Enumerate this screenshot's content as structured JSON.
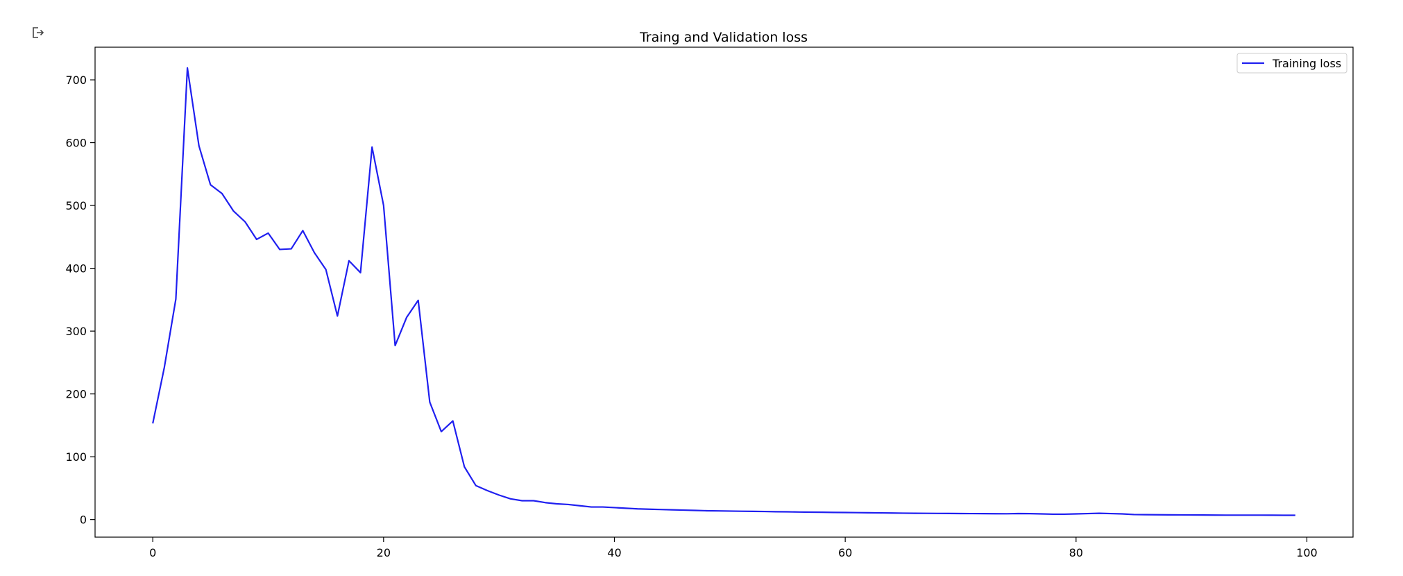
{
  "output_icon": "output-redirect-icon",
  "colors": {
    "series": "#1f1ff0",
    "axes": "#000000",
    "legend_border": "#cccccc"
  },
  "chart_data": {
    "type": "line",
    "title": "Traing and Validation loss",
    "xlabel": "",
    "ylabel": "",
    "xlim": [
      -5,
      104
    ],
    "ylim": [
      -28,
      752
    ],
    "xticks": [
      0,
      20,
      40,
      60,
      80,
      100
    ],
    "yticks": [
      0,
      100,
      200,
      300,
      400,
      500,
      600,
      700
    ],
    "xtick_labels": [
      "0",
      "20",
      "40",
      "60",
      "80",
      "100"
    ],
    "ytick_labels": [
      "0",
      "100",
      "200",
      "300",
      "400",
      "500",
      "600",
      "700"
    ],
    "grid": false,
    "legend_position": "top-right",
    "series": [
      {
        "name": "Training loss",
        "x": [
          0,
          1,
          2,
          3,
          4,
          5,
          6,
          7,
          8,
          9,
          10,
          11,
          12,
          13,
          14,
          15,
          16,
          17,
          18,
          19,
          20,
          21,
          22,
          23,
          24,
          25,
          26,
          27,
          28,
          29,
          30,
          31,
          32,
          33,
          34,
          35,
          36,
          37,
          38,
          39,
          40,
          41,
          42,
          43,
          44,
          45,
          46,
          47,
          48,
          49,
          50,
          51,
          52,
          53,
          54,
          55,
          56,
          57,
          58,
          59,
          60,
          61,
          62,
          63,
          64,
          65,
          66,
          67,
          68,
          69,
          70,
          71,
          72,
          73,
          74,
          75,
          76,
          77,
          78,
          79,
          80,
          81,
          82,
          83,
          84,
          85,
          86,
          87,
          88,
          89,
          90,
          91,
          92,
          93,
          94,
          95,
          96,
          97,
          98,
          99
        ],
        "values": [
          153,
          242,
          351,
          719,
          595,
          533,
          519,
          491,
          474,
          446,
          456,
          430,
          431,
          460,
          425,
          398,
          324,
          412,
          393,
          593,
          500,
          277,
          322,
          349,
          187,
          140,
          157,
          84,
          54,
          46,
          39,
          33,
          30,
          30,
          27,
          25,
          24,
          22,
          20,
          20,
          19,
          18,
          17,
          16.5,
          16,
          15.5,
          15,
          14.5,
          14,
          13.8,
          13.5,
          13.2,
          13,
          12.8,
          12.5,
          12.3,
          12,
          11.8,
          11.6,
          11.4,
          11.2,
          11,
          10.8,
          10.6,
          10.4,
          10.2,
          10,
          9.9,
          9.8,
          9.7,
          9.6,
          9.5,
          9.4,
          9.3,
          9.2,
          9.6,
          9.4,
          9,
          8.5,
          8.5,
          9,
          9.5,
          10,
          9.5,
          9,
          8,
          7.8,
          7.6,
          7.5,
          7.4,
          7.3,
          7.2,
          7.1,
          7,
          7,
          7,
          7,
          6.9,
          6.8,
          6.8
        ]
      }
    ]
  }
}
